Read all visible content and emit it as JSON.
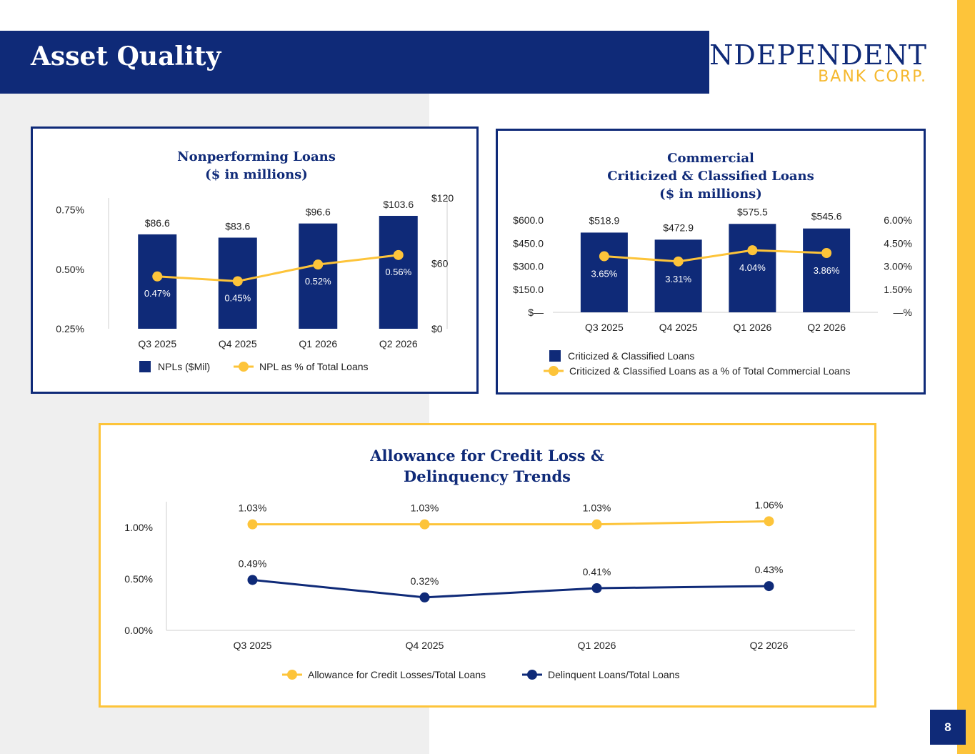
{
  "header": {
    "title": "Asset Quality",
    "logo_top": "INDEPENDENT",
    "logo_bottom": "BANK CORP.",
    "page_number": "8"
  },
  "colors": {
    "navy": "#0f2a78",
    "gold": "#fdc43a"
  },
  "chart_data": [
    {
      "type": "bar",
      "title_lines": [
        "Nonperforming Loans",
        "($ in millions)"
      ],
      "categories": [
        "Q3 2025",
        "Q4 2025",
        "Q1 2026",
        "Q2 2026"
      ],
      "series": [
        {
          "name": "NPLs ($Mil)",
          "type": "bar",
          "axis": "right",
          "values": [
            86.6,
            83.6,
            96.6,
            103.6
          ],
          "labels": [
            "$86.6",
            "$83.6",
            "$96.6",
            "$103.6"
          ]
        },
        {
          "name": "NPL as % of Total Loans",
          "type": "line",
          "axis": "left",
          "values": [
            0.47,
            0.45,
            0.52,
            0.56
          ],
          "labels": [
            "0.47%",
            "0.45%",
            "0.52%",
            "0.56%"
          ]
        }
      ],
      "left_axis": {
        "min": 0.25,
        "max": 0.8,
        "ticks": [
          0.25,
          0.5,
          0.75
        ],
        "tick_labels": [
          "0.25%",
          "0.50%",
          "0.75%"
        ]
      },
      "right_axis": {
        "min": 0,
        "max": 120,
        "ticks": [
          0,
          60,
          120
        ],
        "tick_labels": [
          "$0",
          "$60",
          "$120"
        ]
      },
      "legend_position": "bottom"
    },
    {
      "type": "bar",
      "title_lines": [
        "Commercial",
        "Criticized & Classified Loans",
        "($ in millions)"
      ],
      "categories": [
        "Q3 2025",
        "Q4 2025",
        "Q1 2026",
        "Q2 2026"
      ],
      "series": [
        {
          "name": "Criticized & Classified Loans",
          "type": "bar",
          "axis": "left",
          "values": [
            518.9,
            472.9,
            575.5,
            545.6
          ],
          "labels": [
            "$518.9",
            "$472.9",
            "$575.5",
            "$545.6"
          ]
        },
        {
          "name": "Criticized & Classified Loans as a % of Total Commercial Loans",
          "type": "line",
          "axis": "right",
          "values": [
            3.65,
            3.31,
            4.04,
            3.86
          ],
          "labels": [
            "3.65%",
            "3.31%",
            "4.04%",
            "3.86%"
          ]
        }
      ],
      "left_axis": {
        "min": 0,
        "max": 600,
        "ticks": [
          0,
          150,
          300,
          450,
          600
        ],
        "tick_labels": [
          "$—",
          "$150.0",
          "$300.0",
          "$450.0",
          "$600.0"
        ]
      },
      "right_axis": {
        "min": 0,
        "max": 6,
        "ticks": [
          0,
          1.5,
          3,
          4.5,
          6
        ],
        "tick_labels": [
          "—%",
          "1.50%",
          "3.00%",
          "4.50%",
          "6.00%"
        ]
      },
      "legend_position": "bottom"
    },
    {
      "type": "line",
      "title_lines": [
        "Allowance for Credit Loss &",
        "Delinquency Trends"
      ],
      "categories": [
        "Q3 2025",
        "Q4 2025",
        "Q1 2026",
        "Q2 2026"
      ],
      "series": [
        {
          "name": "Allowance for Credit Losses/Total Loans",
          "values": [
            1.03,
            1.03,
            1.03,
            1.06
          ],
          "labels": [
            "1.03%",
            "1.03%",
            "1.03%",
            "1.06%"
          ]
        },
        {
          "name": "Delinquent Loans/Total Loans",
          "values": [
            0.49,
            0.32,
            0.41,
            0.43
          ],
          "labels": [
            "0.49%",
            "0.32%",
            "0.41%",
            "0.43%"
          ]
        }
      ],
      "y_axis": {
        "min": 0,
        "max": 1.25,
        "ticks": [
          0,
          0.5,
          1.0
        ],
        "tick_labels": [
          "0.00%",
          "0.50%",
          "1.00%"
        ]
      },
      "legend_position": "bottom"
    }
  ]
}
